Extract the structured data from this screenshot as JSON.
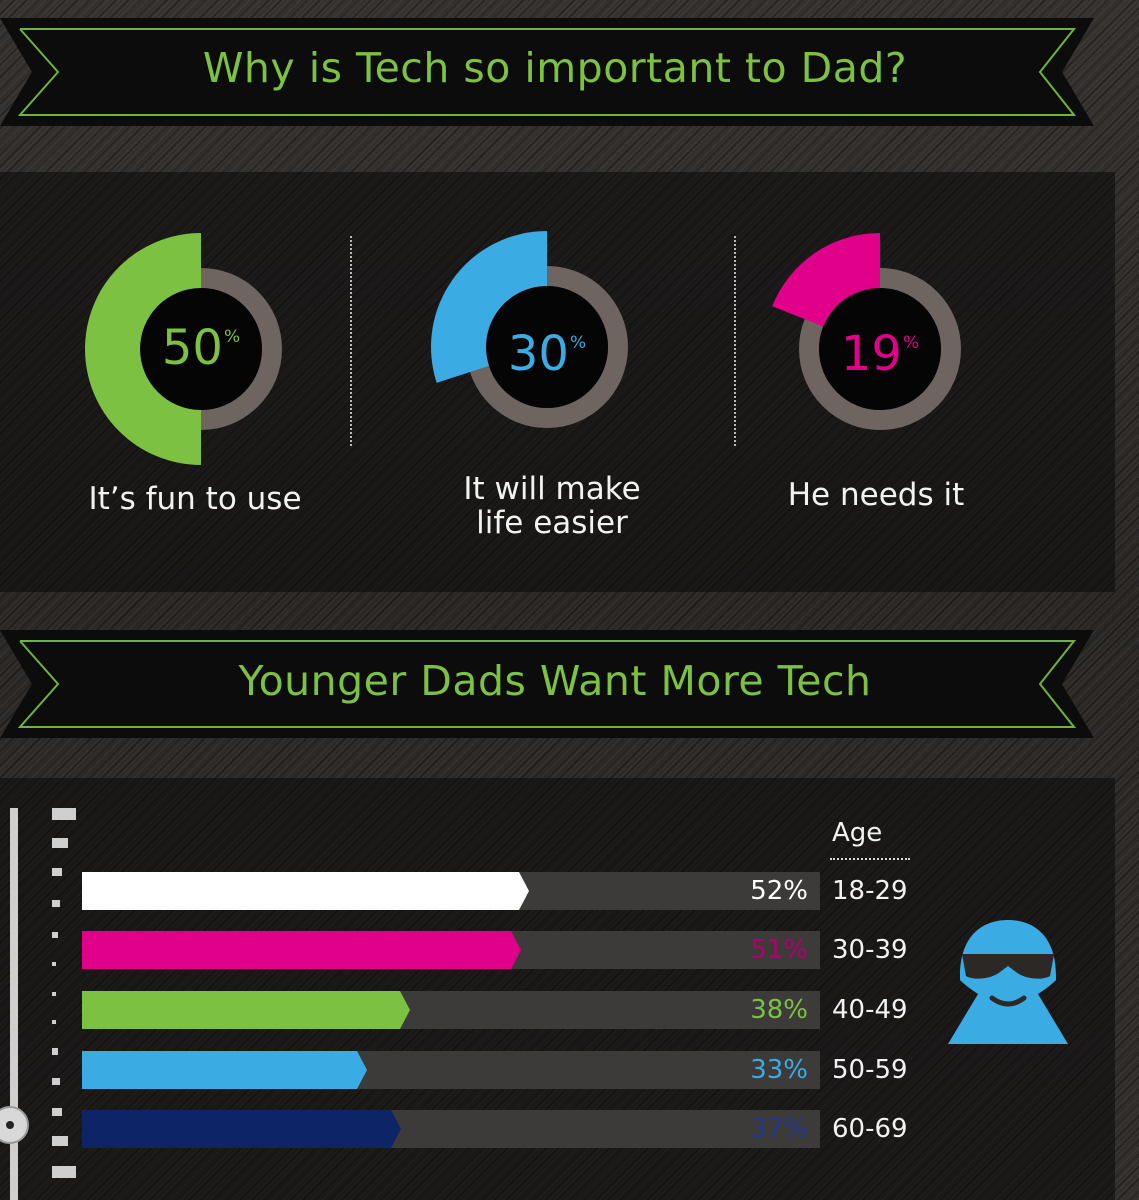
{
  "banner1": {
    "title": "Why is Tech so important to Dad?"
  },
  "banner2": {
    "title": "Younger Dads Want More Tech"
  },
  "colors": {
    "green": "#7dc142",
    "blue": "#3aabe3",
    "magenta": "#e1008a",
    "white": "#ffffff",
    "navy": "#0d2466",
    "ring": "#6e6460",
    "track": "#3d3b3a"
  },
  "chart_data": [
    {
      "type": "pie",
      "items": [
        {
          "value": "50",
          "unit": "%",
          "label": "It’s fun to use",
          "color": "#7dc142"
        },
        {
          "value": "30",
          "unit": "%",
          "label_line1": "It will make",
          "label_line2": "life easier",
          "color": "#3aabe3"
        },
        {
          "value": "19",
          "unit": "%",
          "label": "He needs it",
          "color": "#e1008a"
        }
      ]
    },
    {
      "type": "bar",
      "orientation": "horizontal",
      "category_header": "Age",
      "categories": [
        "18-29",
        "30-39",
        "40-49",
        "50-59",
        "60-69"
      ],
      "values": [
        52,
        51,
        38,
        33,
        37
      ],
      "labels": [
        "52%",
        "51%",
        "38%",
        "33%",
        "37%"
      ],
      "colors": [
        "#ffffff",
        "#e1008a",
        "#7dc142",
        "#3aabe3",
        "#0d2466"
      ],
      "label_colors": [
        "#ffffff",
        "#b10070",
        "#7dc142",
        "#3aabe3",
        "#1e3a8c"
      ]
    }
  ],
  "icons": {
    "dad_avatar": "sunglasses-avatar-icon"
  }
}
